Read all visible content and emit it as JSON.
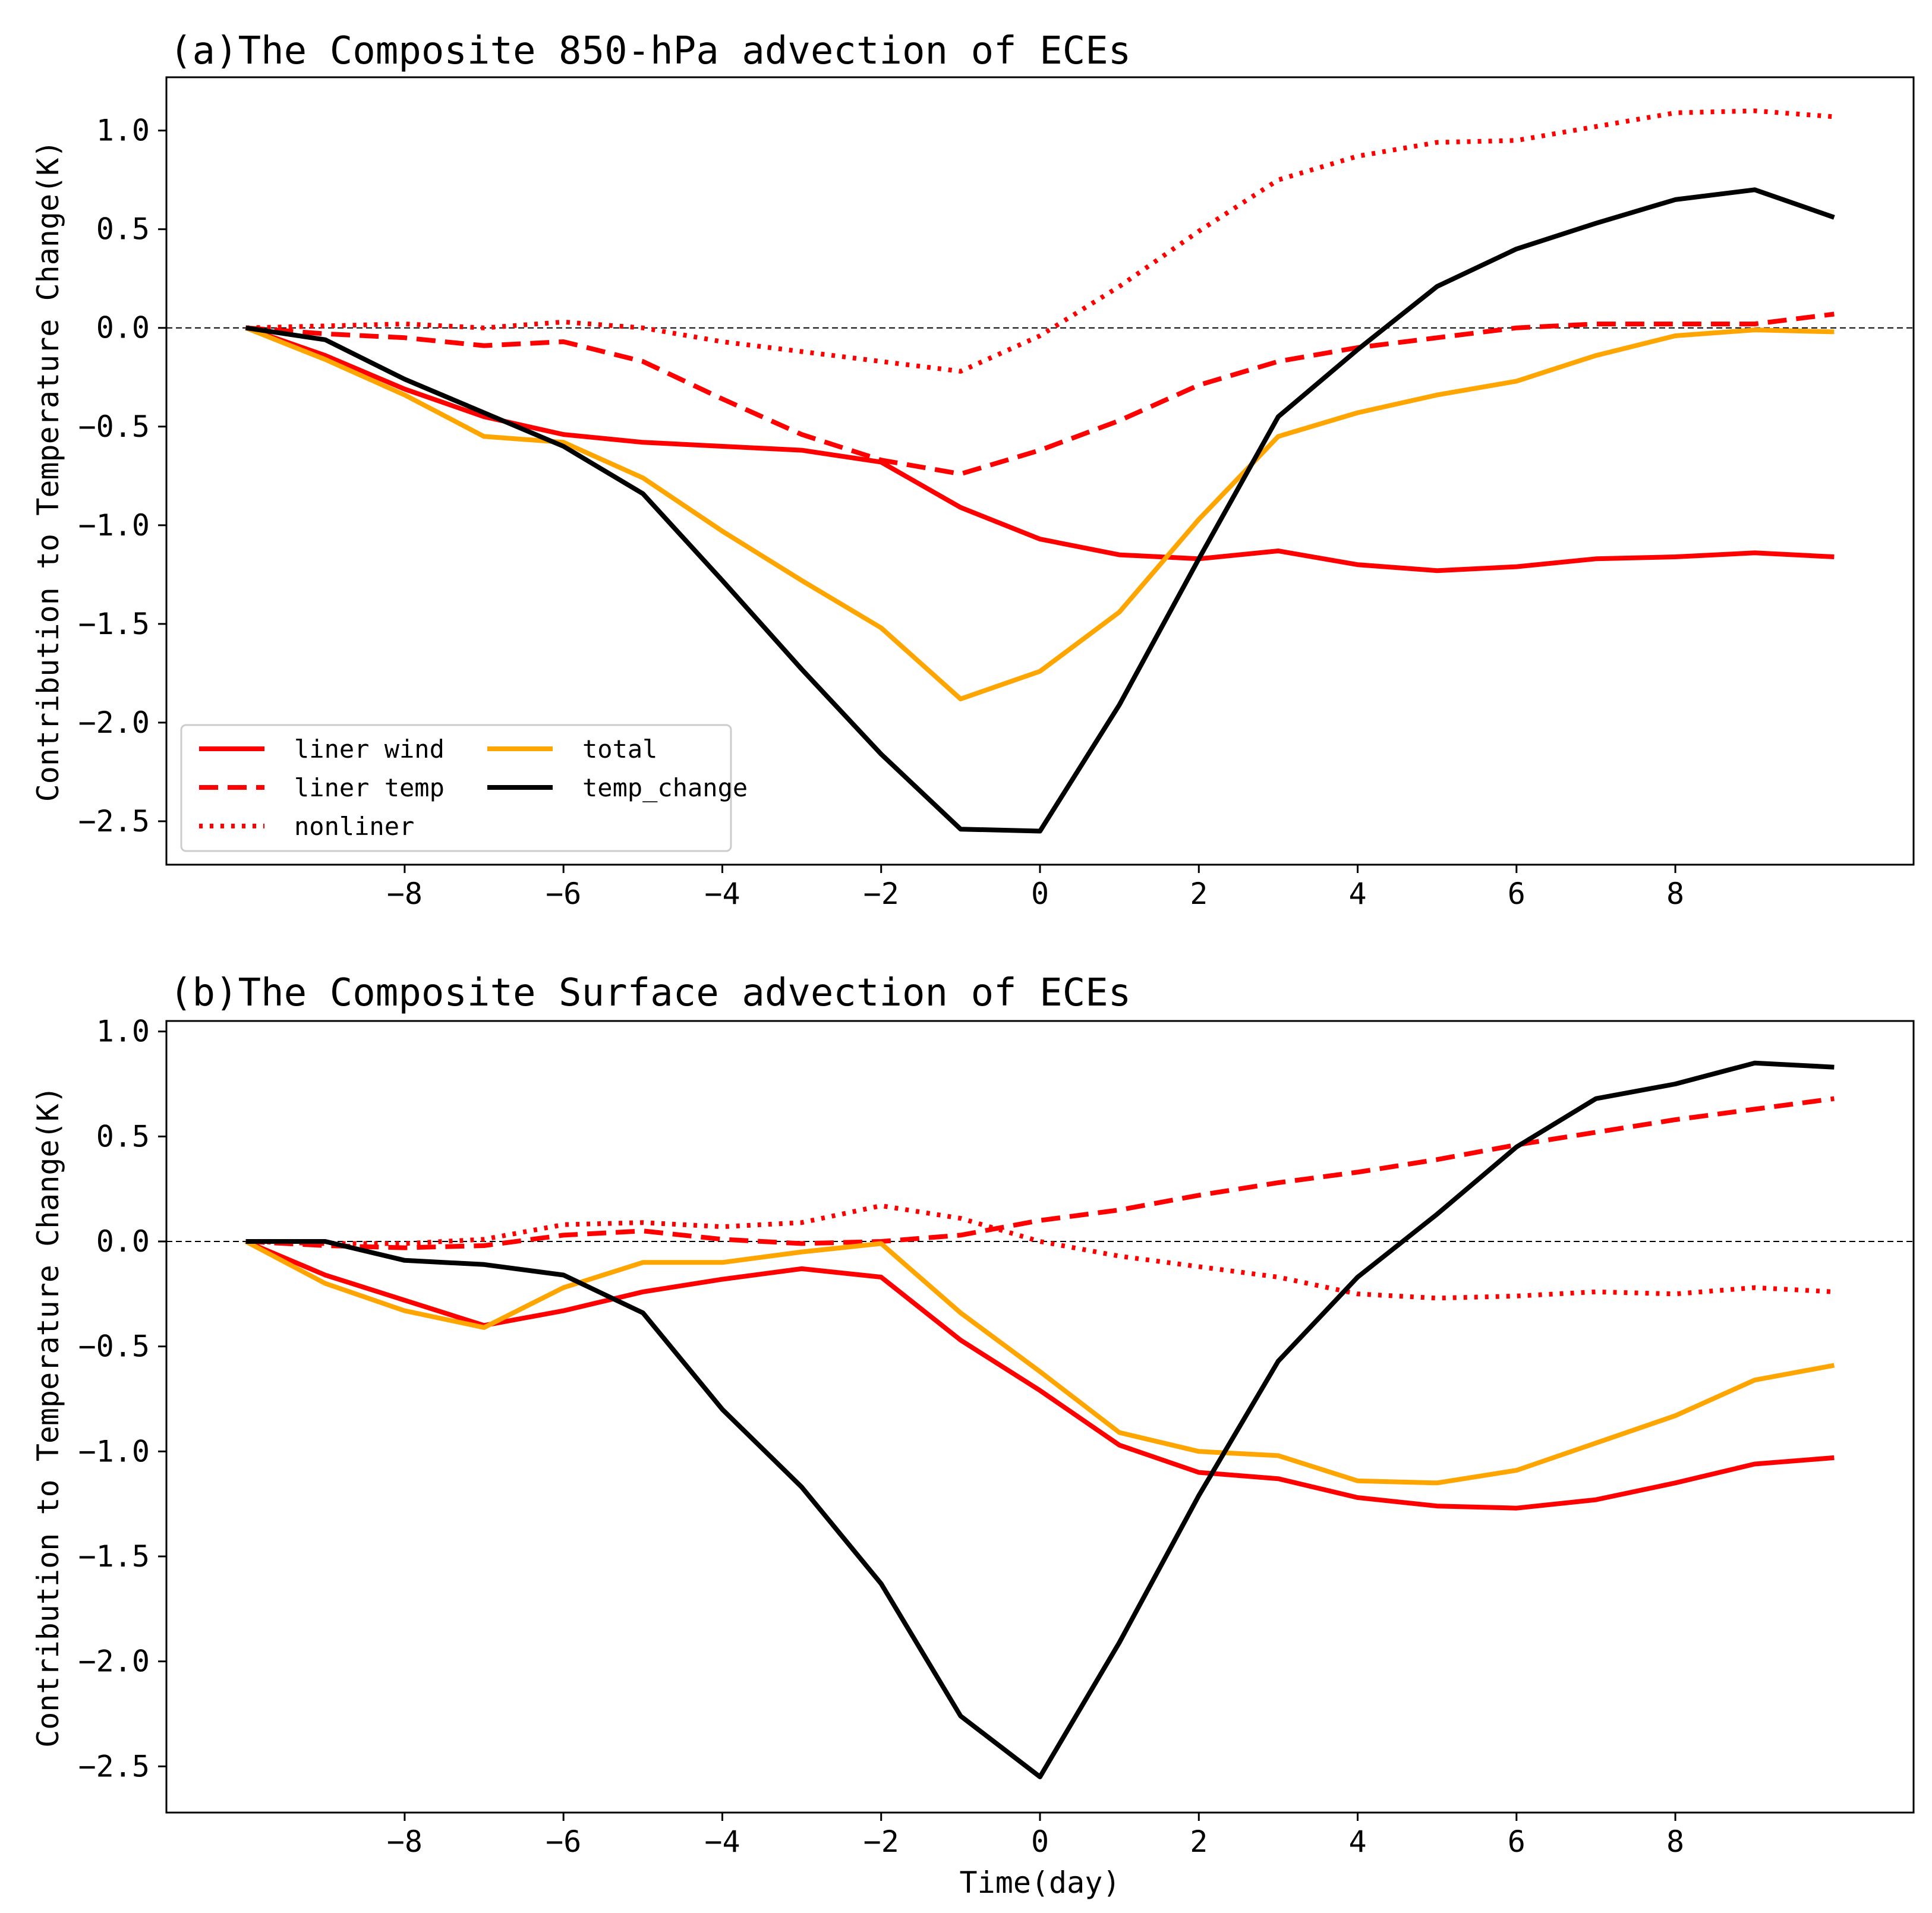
{
  "chart_data": [
    {
      "type": "line",
      "title": "(a)The Composite 850-hPa advection of ECEs",
      "xlabel": "",
      "ylabel": "Contribution to Temperature Change(K)",
      "xlim": [
        -11,
        11
      ],
      "ylim": [
        -2.72,
        1.27
      ],
      "xticks": [
        -8,
        -6,
        -4,
        -2,
        0,
        2,
        4,
        6,
        8
      ],
      "xtick_labels": [
        "−8",
        "−6",
        "−4",
        "−2",
        "0",
        "2",
        "4",
        "6",
        "8"
      ],
      "yticks": [
        -2.5,
        -2.0,
        -1.5,
        -1.0,
        -0.5,
        0.0,
        0.5,
        1.0
      ],
      "ytick_labels": [
        "−2.5",
        "−2.0",
        "−1.5",
        "−1.0",
        "−0.5",
        "0.0",
        "0.5",
        "1.0"
      ],
      "zero_line": true,
      "grid": false,
      "x": [
        -10,
        -9,
        -8,
        -7,
        -6,
        -5,
        -4,
        -3,
        -2,
        -1,
        0,
        1,
        2,
        3,
        4,
        5,
        6,
        7,
        8,
        9,
        10
      ],
      "series": [
        {
          "name": "liner wind",
          "color": "#ff0000",
          "style": "solid",
          "values": [
            0.0,
            -0.14,
            -0.31,
            -0.45,
            -0.54,
            -0.58,
            -0.6,
            -0.62,
            -0.68,
            -0.91,
            -1.07,
            -1.15,
            -1.17,
            -1.13,
            -1.2,
            -1.23,
            -1.21,
            -1.17,
            -1.16,
            -1.14,
            -1.16
          ]
        },
        {
          "name": "liner temp",
          "color": "#ff0000",
          "style": "dashed",
          "values": [
            0.0,
            -0.03,
            -0.05,
            -0.09,
            -0.07,
            -0.17,
            -0.36,
            -0.54,
            -0.67,
            -0.74,
            -0.62,
            -0.47,
            -0.29,
            -0.17,
            -0.1,
            -0.05,
            0.0,
            0.02,
            0.02,
            0.02,
            0.07
          ]
        },
        {
          "name": "nonliner",
          "color": "#ff0000",
          "style": "dotted",
          "values": [
            0.0,
            0.01,
            0.02,
            0.0,
            0.03,
            0.0,
            -0.07,
            -0.12,
            -0.17,
            -0.22,
            -0.04,
            0.21,
            0.49,
            0.75,
            0.87,
            0.94,
            0.95,
            1.02,
            1.09,
            1.1,
            1.07
          ]
        },
        {
          "name": "total",
          "color": "#ffa500",
          "style": "solid",
          "values": [
            0.0,
            -0.16,
            -0.34,
            -0.55,
            -0.58,
            -0.76,
            -1.03,
            -1.28,
            -1.52,
            -1.88,
            -1.74,
            -1.44,
            -0.97,
            -0.55,
            -0.43,
            -0.34,
            -0.27,
            -0.14,
            -0.04,
            -0.01,
            -0.02
          ]
        },
        {
          "name": "temp_change",
          "color": "#000000",
          "style": "solid",
          "values": [
            0.0,
            -0.06,
            -0.26,
            -0.43,
            -0.6,
            -0.84,
            -1.28,
            -1.73,
            -2.16,
            -2.54,
            -2.55,
            -1.91,
            -1.17,
            -0.45,
            -0.11,
            0.21,
            0.4,
            0.53,
            0.65,
            0.7,
            0.56
          ]
        }
      ],
      "legend": {
        "placement": "lower-left",
        "columns": 2,
        "entries": [
          "liner wind",
          "liner temp",
          "nonliner",
          "total",
          "temp_change"
        ]
      }
    },
    {
      "type": "line",
      "title": "(b)The Composite Surface advection of ECEs",
      "xlabel": "Time(day)",
      "ylabel": "Contribution to Temperature Change(K)",
      "xlim": [
        -11,
        11
      ],
      "ylim": [
        -2.72,
        1.05
      ],
      "xticks": [
        -8,
        -6,
        -4,
        -2,
        0,
        2,
        4,
        6,
        8
      ],
      "xtick_labels": [
        "−8",
        "−6",
        "−4",
        "−2",
        "0",
        "2",
        "4",
        "6",
        "8"
      ],
      "yticks": [
        -2.5,
        -2.0,
        -1.5,
        -1.0,
        -0.5,
        0.0,
        0.5,
        1.0
      ],
      "ytick_labels": [
        "−2.5",
        "−2.0",
        "−1.5",
        "−1.0",
        "−0.5",
        "0.0",
        "0.5",
        "1.0"
      ],
      "zero_line": true,
      "grid": false,
      "x": [
        -10,
        -9,
        -8,
        -7,
        -6,
        -5,
        -4,
        -3,
        -2,
        -1,
        0,
        1,
        2,
        3,
        4,
        5,
        6,
        7,
        8,
        9,
        10
      ],
      "series": [
        {
          "name": "liner wind",
          "color": "#ff0000",
          "style": "solid",
          "values": [
            0.0,
            -0.16,
            -0.28,
            -0.4,
            -0.33,
            -0.24,
            -0.18,
            -0.13,
            -0.17,
            -0.47,
            -0.71,
            -0.97,
            -1.1,
            -1.13,
            -1.22,
            -1.26,
            -1.27,
            -1.23,
            -1.15,
            -1.06,
            -1.03
          ]
        },
        {
          "name": "liner temp",
          "color": "#ff0000",
          "style": "dashed",
          "values": [
            0.0,
            -0.02,
            -0.03,
            -0.02,
            0.03,
            0.05,
            0.01,
            -0.01,
            0.0,
            0.03,
            0.1,
            0.15,
            0.22,
            0.28,
            0.33,
            0.39,
            0.46,
            0.52,
            0.58,
            0.63,
            0.68
          ]
        },
        {
          "name": "nonliner",
          "color": "#ff0000",
          "style": "dotted",
          "values": [
            0.0,
            -0.01,
            -0.01,
            0.01,
            0.08,
            0.09,
            0.07,
            0.09,
            0.17,
            0.11,
            0.0,
            -0.07,
            -0.12,
            -0.17,
            -0.25,
            -0.27,
            -0.26,
            -0.24,
            -0.25,
            -0.22,
            -0.24
          ]
        },
        {
          "name": "total",
          "color": "#ffa500",
          "style": "solid",
          "values": [
            0.0,
            -0.2,
            -0.33,
            -0.41,
            -0.22,
            -0.1,
            -0.1,
            -0.05,
            -0.01,
            -0.34,
            -0.62,
            -0.91,
            -1.0,
            -1.02,
            -1.14,
            -1.15,
            -1.09,
            -0.96,
            -0.83,
            -0.66,
            -0.59
          ]
        },
        {
          "name": "temp_change",
          "color": "#000000",
          "style": "solid",
          "values": [
            0.0,
            0.0,
            -0.09,
            -0.11,
            -0.16,
            -0.34,
            -0.8,
            -1.17,
            -1.63,
            -2.26,
            -2.55,
            -1.91,
            -1.21,
            -0.57,
            -0.17,
            0.13,
            0.45,
            0.68,
            0.75,
            0.85,
            0.83
          ]
        }
      ],
      "legend": null
    }
  ]
}
